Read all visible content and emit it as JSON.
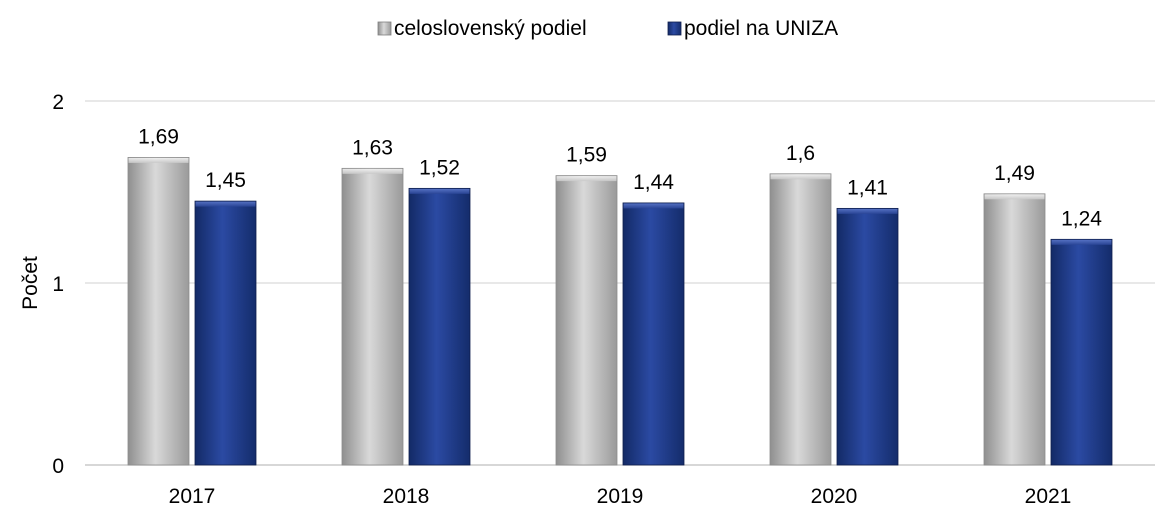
{
  "chart_data": {
    "type": "bar",
    "categories": [
      "2017",
      "2018",
      "2019",
      "2020",
      "2021"
    ],
    "series": [
      {
        "name": "celoslovenský podiel",
        "values": [
          1.69,
          1.63,
          1.59,
          1.6,
          1.49
        ],
        "labels": [
          "1,69",
          "1,63",
          "1,59",
          "1,6",
          "1,49"
        ],
        "color": "#bfbfbf"
      },
      {
        "name": "podiel na UNIZA",
        "values": [
          1.45,
          1.52,
          1.44,
          1.41,
          1.24
        ],
        "labels": [
          "1,45",
          "1,52",
          "1,44",
          "1,41",
          "1,24"
        ],
        "color": "#1f3a8a"
      }
    ],
    "ylabel": "Počet",
    "ylim": [
      0,
      2
    ],
    "yticks": [
      0,
      1,
      2
    ],
    "ytick_labels": [
      "0",
      "1",
      "2"
    ],
    "grid": true,
    "legend": "top-center"
  }
}
